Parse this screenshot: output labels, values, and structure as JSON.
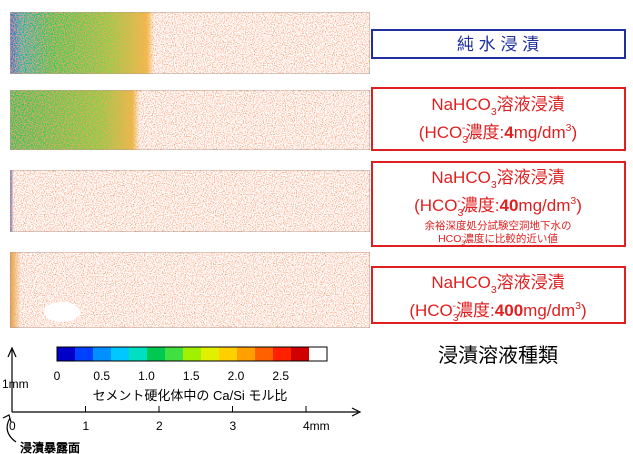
{
  "labels": [
    {
      "lines": [
        [
          "純 水 浸 漬"
        ]
      ]
    },
    {
      "lines": [
        [
          "NaHCO",
          "3",
          "溶液浸漬"
        ],
        [
          "(HCO",
          "3",
          "-",
          "濃度:",
          "4",
          "mg/dm",
          "3",
          ")"
        ]
      ]
    },
    {
      "lines": [
        [
          "NaHCO",
          "3",
          "溶液浸漬"
        ],
        [
          "(HCO",
          "3",
          "-",
          "濃度:",
          "40",
          "mg/dm",
          "3",
          ")"
        ],
        [
          "余裕深度処分試験空洞地下水の"
        ],
        [
          "HCO",
          "3",
          "-",
          "濃度に比較的近い値"
        ]
      ]
    },
    {
      "lines": [
        [
          "NaHCO",
          "3",
          "溶液浸漬"
        ],
        [
          "(HCO",
          "3",
          "-",
          "濃度:",
          "400",
          "mg/dm",
          "3",
          ")"
        ]
      ]
    }
  ],
  "legend_title": "浸漬溶液種類",
  "colorbar": {
    "ticks": [
      0,
      0.5,
      {
        "value": 1,
        "label": "1.0"
      },
      1.5,
      {
        "value": 2,
        "label": "2.0"
      },
      2.5
    ],
    "label": "セメント硬化体中の Ca/Si モル比"
  },
  "scale": {
    "ticks": [
      0,
      1,
      2,
      3,
      {
        "value": 4,
        "label": "4mm"
      }
    ],
    "vertical_label": "1mm"
  },
  "surface_label": "浸漬暴露面"
}
